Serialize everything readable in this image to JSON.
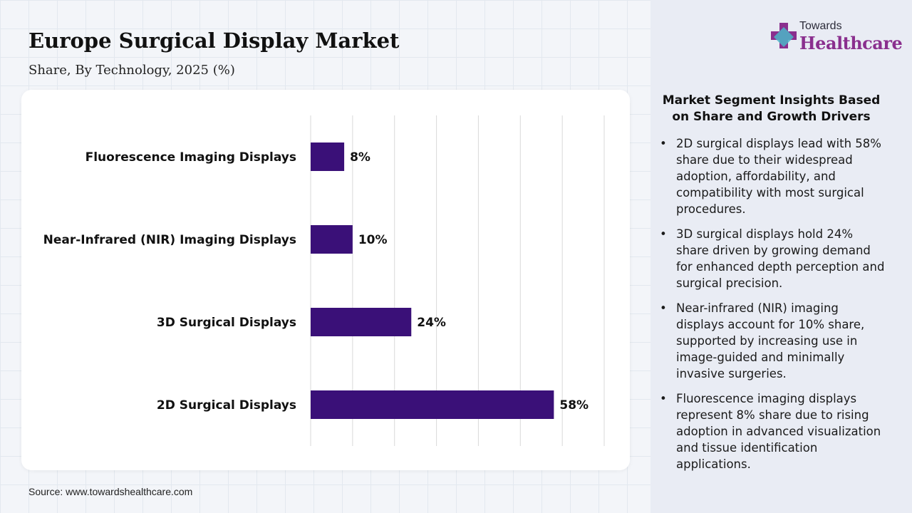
{
  "header": {
    "title": "Europe Surgical Display Market",
    "subtitle": "Share, By Technology, 2025 (%)"
  },
  "brand": {
    "line1": "Towards",
    "line2": "Healthcare",
    "logo_icon": "cross-logo-icon"
  },
  "chart_data": {
    "type": "bar",
    "orientation": "horizontal",
    "categories": [
      "Fluorescence Imaging Displays",
      "Near-Infrared (NIR) Imaging Displays",
      "3D Surgical Displays",
      "2D Surgical Displays"
    ],
    "values": [
      8,
      10,
      24,
      58
    ],
    "data_labels": [
      "8%",
      "10%",
      "24%",
      "58%"
    ],
    "unit": "%",
    "xlim": [
      0,
      70
    ],
    "grid": true,
    "bar_color": "#3a1078"
  },
  "insights": {
    "title": "Market Segment Insights Based on Share and Growth Drivers",
    "items": [
      "2D surgical displays lead with 58% share due to their widespread adoption, affordability, and compatibility with most surgical procedures.",
      "3D surgical displays hold 24% share driven by growing demand for enhanced depth perception and surgical precision.",
      "Near-infrared (NIR) imaging displays account for 10% share, supported by increasing use in image-guided and minimally invasive surgeries.",
      "Fluorescence imaging displays represent 8% share due to rising adoption in advanced visualization and tissue identification applications."
    ]
  },
  "footer": {
    "source": "Source: www.towardshealthcare.com"
  }
}
